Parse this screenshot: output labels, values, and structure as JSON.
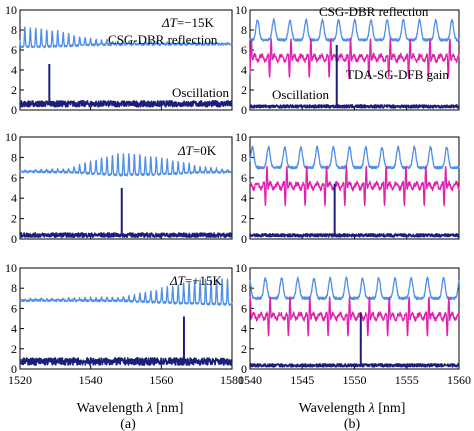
{
  "figure": {
    "caption_left": "(a)",
    "caption_right": "(b)"
  },
  "chart_data": [
    {
      "type": "line",
      "panel": "a-top",
      "title": "",
      "annotation_dt": "ΔT=−15K",
      "labels": [
        "CSG-DBR reflection",
        "Oscillation"
      ],
      "xlim": [
        1520,
        1580
      ],
      "ylim": [
        0,
        10
      ],
      "yticks": [
        "0",
        "2",
        "4",
        "6",
        "8",
        "10"
      ],
      "series": [
        {
          "color": "#4f8fe8",
          "kind": "comb",
          "baseline": 6.6,
          "amplitude": [
            [
              1520,
              2.0
            ],
            [
              1530,
              1.6
            ],
            [
              1540,
              0.6
            ],
            [
              1550,
              0.3
            ],
            [
              1580,
              0.15
            ]
          ],
          "period": 1.55,
          "start": 1520.6
        },
        {
          "color": "#1c1f7a",
          "kind": "noise",
          "base": 0.5,
          "noise": 0.5,
          "spikes": [
            [
              1528.3,
              4.6
            ]
          ]
        }
      ]
    },
    {
      "type": "line",
      "panel": "a-mid",
      "title": "",
      "annotation_dt": "ΔT=0K",
      "labels": [],
      "xlim": [
        1520,
        1580
      ],
      "ylim": [
        0,
        10
      ],
      "yticks": [
        "0",
        "2",
        "4",
        "6",
        "8",
        "10"
      ],
      "series": [
        {
          "color": "#4f8fe8",
          "kind": "comb",
          "baseline": 6.6,
          "amplitude": [
            [
              1520,
              0.1
            ],
            [
              1534,
              0.4
            ],
            [
              1548,
              2.2
            ],
            [
              1560,
              1.6
            ],
            [
              1572,
              0.5
            ],
            [
              1580,
              0.2
            ]
          ],
          "period": 1.55,
          "start": 1520.6
        },
        {
          "color": "#1c1f7a",
          "kind": "noise",
          "base": 0.3,
          "noise": 0.35,
          "spikes": [
            [
              1548.8,
              5.0
            ]
          ]
        }
      ]
    },
    {
      "type": "line",
      "panel": "a-bot",
      "title": "",
      "annotation_dt": "ΔT=+15K",
      "labels": [],
      "xlim": [
        1520,
        1580
      ],
      "ylim": [
        0,
        10
      ],
      "yticks": [
        "0",
        "2",
        "4",
        "6",
        "8",
        "10"
      ],
      "xticks": [
        "1520",
        "1540",
        "1560",
        "1580"
      ],
      "series": [
        {
          "color": "#4f8fe8",
          "kind": "comb",
          "baseline": 6.8,
          "amplitude": [
            [
              1520,
              0.1
            ],
            [
              1550,
              0.4
            ],
            [
              1562,
              1.6
            ],
            [
              1572,
              2.4
            ],
            [
              1580,
              2.6
            ]
          ],
          "period": 1.55,
          "start": 1520.6
        },
        {
          "color": "#1c1f7a",
          "kind": "noise",
          "base": 0.6,
          "noise": 0.6,
          "spikes": [
            [
              1566.4,
              5.2
            ]
          ]
        }
      ]
    },
    {
      "type": "line",
      "panel": "b-top",
      "title": "",
      "labels": [
        "CSG-DBR reflection",
        "TDA-SG-DFB gain",
        "Oscillation"
      ],
      "xlim": [
        1540,
        1560
      ],
      "ylim": [
        0,
        10
      ],
      "yticks": [
        "0",
        "2",
        "4",
        "6",
        "8",
        "10"
      ],
      "series": [
        {
          "color": "#4f8fe8",
          "kind": "peaked",
          "baseline": 7.0,
          "height": 2.0,
          "period": 1.55,
          "start": 1541.5
        },
        {
          "color": "#e020b0",
          "kind": "zigzag",
          "baseline": 5.2,
          "height": 1.6,
          "period": 1.9,
          "start": 1541.0
        },
        {
          "color": "#1c1f7a",
          "kind": "noise",
          "base": 0.3,
          "noise": 0.25,
          "spikes": [
            [
              1548.3,
              6.5
            ]
          ]
        }
      ]
    },
    {
      "type": "line",
      "panel": "b-mid",
      "title": "",
      "labels": [],
      "xlim": [
        1540,
        1560
      ],
      "ylim": [
        0,
        10
      ],
      "yticks": [
        "0",
        "2",
        "4",
        "6",
        "8",
        "10"
      ],
      "series": [
        {
          "color": "#4f8fe8",
          "kind": "peaked",
          "baseline": 7.0,
          "height": 2.0,
          "period": 1.55,
          "start": 1541.0
        },
        {
          "color": "#e020b0",
          "kind": "zigzag",
          "baseline": 5.2,
          "height": 1.6,
          "period": 1.9,
          "start": 1540.6
        },
        {
          "color": "#1c1f7a",
          "kind": "noise",
          "base": 0.3,
          "noise": 0.25,
          "spikes": [
            [
              1548.1,
              5.4
            ]
          ]
        }
      ]
    },
    {
      "type": "line",
      "panel": "b-bot",
      "title": "",
      "labels": [],
      "xlim": [
        1540,
        1560
      ],
      "ylim": [
        0,
        10
      ],
      "yticks": [
        "0",
        "2",
        "4",
        "6",
        "8",
        "10"
      ],
      "xticks": [
        "1540",
        "1545",
        "1550",
        "1555",
        "1560"
      ],
      "series": [
        {
          "color": "#4f8fe8",
          "kind": "peaked",
          "baseline": 7.0,
          "height": 2.0,
          "period": 1.55,
          "start": 1540.7
        },
        {
          "color": "#e020b0",
          "kind": "zigzag",
          "baseline": 5.2,
          "height": 1.6,
          "period": 1.9,
          "start": 1540.9
        },
        {
          "color": "#1c1f7a",
          "kind": "noise",
          "base": 0.3,
          "noise": 0.25,
          "spikes": [
            [
              1550.6,
              5.6
            ]
          ]
        }
      ]
    }
  ],
  "axis_labels": {
    "left_xlabel_prefix": "Wavelength ",
    "left_xlabel_sym": "λ",
    "left_xlabel_unit": " [nm]",
    "right_xlabel_prefix": "Wavelength ",
    "right_xlabel_sym": "λ",
    "right_xlabel_unit": " [nm]"
  }
}
